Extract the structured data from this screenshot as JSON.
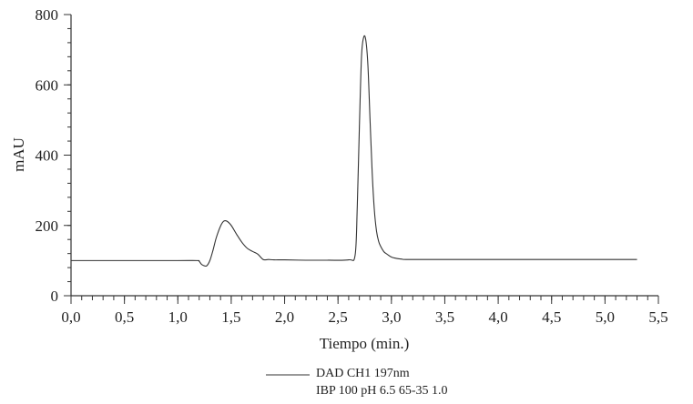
{
  "chart_data": {
    "type": "line",
    "xlabel": "Tiempo (min.)",
    "ylabel": "mAU",
    "xlim": [
      0,
      5.5
    ],
    "ylim": [
      0,
      800
    ],
    "x_ticks": [
      0,
      0.5,
      1,
      1.5,
      2,
      2.5,
      3,
      3.5,
      4,
      4.5,
      5,
      5.5
    ],
    "x_tick_labels": [
      "0,0",
      "0,5",
      "1,0",
      "1,5",
      "2,0",
      "2,5",
      "3,0",
      "3,5",
      "4,0",
      "4,5",
      "5,0",
      "5,5"
    ],
    "y_ticks": [
      0,
      200,
      400,
      600,
      800
    ],
    "y_tick_labels": [
      "0",
      "200",
      "400",
      "600",
      "800"
    ],
    "x_minor_step": 0.1,
    "y_minor_step": 40,
    "grid": false,
    "legend_position": "bottom",
    "series": [
      {
        "name": "DAD CH1 197nm",
        "x": [
          0.0,
          0.5,
          1.0,
          1.18,
          1.2,
          1.22,
          1.24,
          1.27,
          1.3,
          1.33,
          1.36,
          1.4,
          1.43,
          1.46,
          1.5,
          1.55,
          1.6,
          1.65,
          1.7,
          1.75,
          1.8,
          1.85,
          1.9,
          2.0,
          2.2,
          2.4,
          2.6,
          2.66,
          2.68,
          2.7,
          2.72,
          2.74,
          2.76,
          2.78,
          2.8,
          2.82,
          2.84,
          2.86,
          2.88,
          2.9,
          2.93,
          2.96,
          3.0,
          3.05,
          3.1,
          3.15,
          3.5,
          4.0,
          4.5,
          5.0,
          5.3
        ],
        "y": [
          100,
          100,
          100,
          100,
          98,
          90,
          86,
          85,
          100,
          130,
          165,
          198,
          212,
          212,
          200,
          175,
          152,
          135,
          126,
          118,
          103,
          103,
          102,
          102,
          101,
          101,
          102,
          115,
          250,
          480,
          680,
          735,
          728,
          655,
          500,
          350,
          245,
          185,
          155,
          140,
          125,
          118,
          110,
          106,
          104,
          103,
          103,
          103,
          103,
          103,
          103
        ]
      }
    ],
    "legend": {
      "line1": "DAD CH1 197nm",
      "line2": "IBP 100 pH 6.5 65-35 1.0"
    }
  }
}
